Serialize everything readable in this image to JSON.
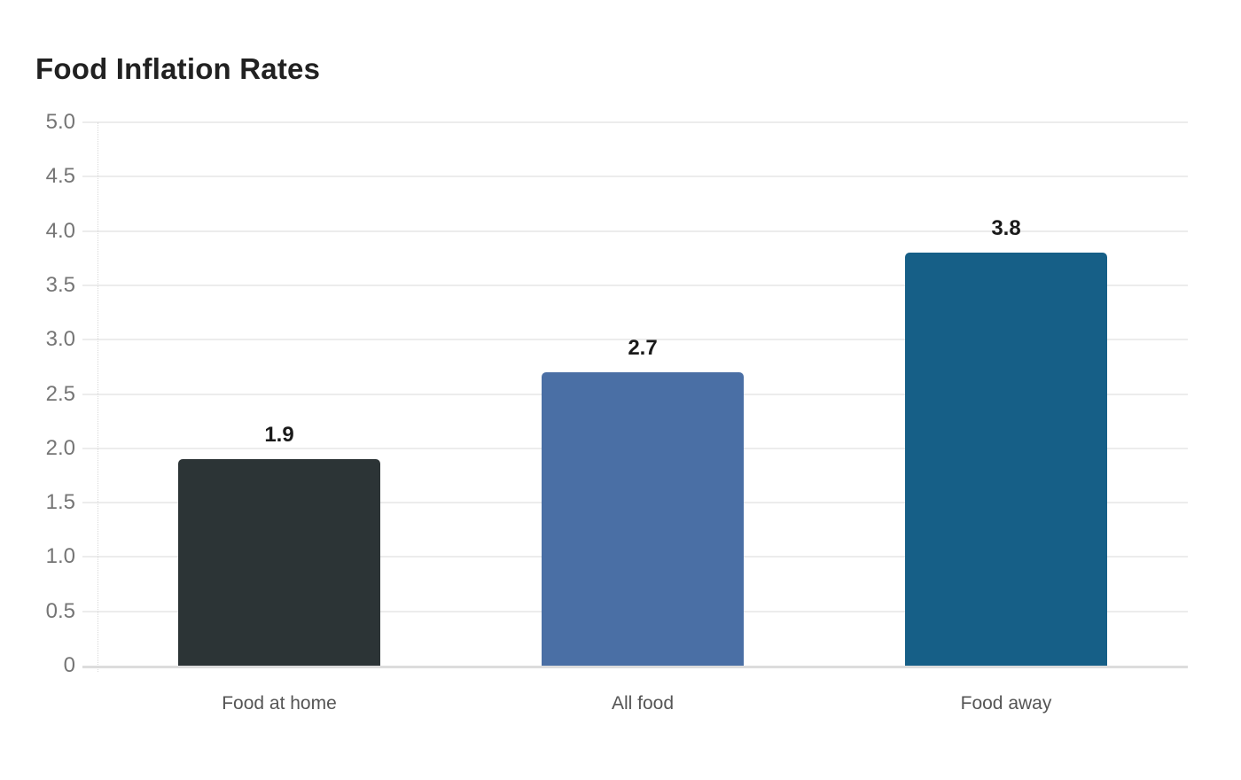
{
  "chart_data": {
    "type": "bar",
    "title": "Food Inflation Rates",
    "categories": [
      "Food at home",
      "All food",
      "Food away"
    ],
    "values": [
      1.9,
      2.7,
      3.8
    ],
    "value_labels": [
      "1.9",
      "2.7",
      "3.8"
    ],
    "bar_colors": [
      "#2c3436",
      "#4a6fa5",
      "#165f87"
    ],
    "ytick_labels": [
      "5.0",
      "4.5",
      "4.0",
      "3.5",
      "3.0",
      "2.5",
      "2.0",
      "1.5",
      "1.0",
      "0.5",
      "0"
    ],
    "ytick_values": [
      5.0,
      4.5,
      4.0,
      3.5,
      3.0,
      2.5,
      2.0,
      1.5,
      1.0,
      0.5,
      0
    ],
    "ylim": [
      0,
      5
    ],
    "xlabel": "",
    "ylabel": "",
    "grid": true,
    "legend_position": "none",
    "colors": {
      "background": "#ffffff",
      "title_text": "#212121",
      "gridline": "#ececec",
      "zero_line": "#dcdcdc",
      "y_tick_text": "#757575",
      "x_label_text": "#555555",
      "value_label_text": "#1a1a1a",
      "axis_dotted": "#d9d9d9"
    }
  }
}
